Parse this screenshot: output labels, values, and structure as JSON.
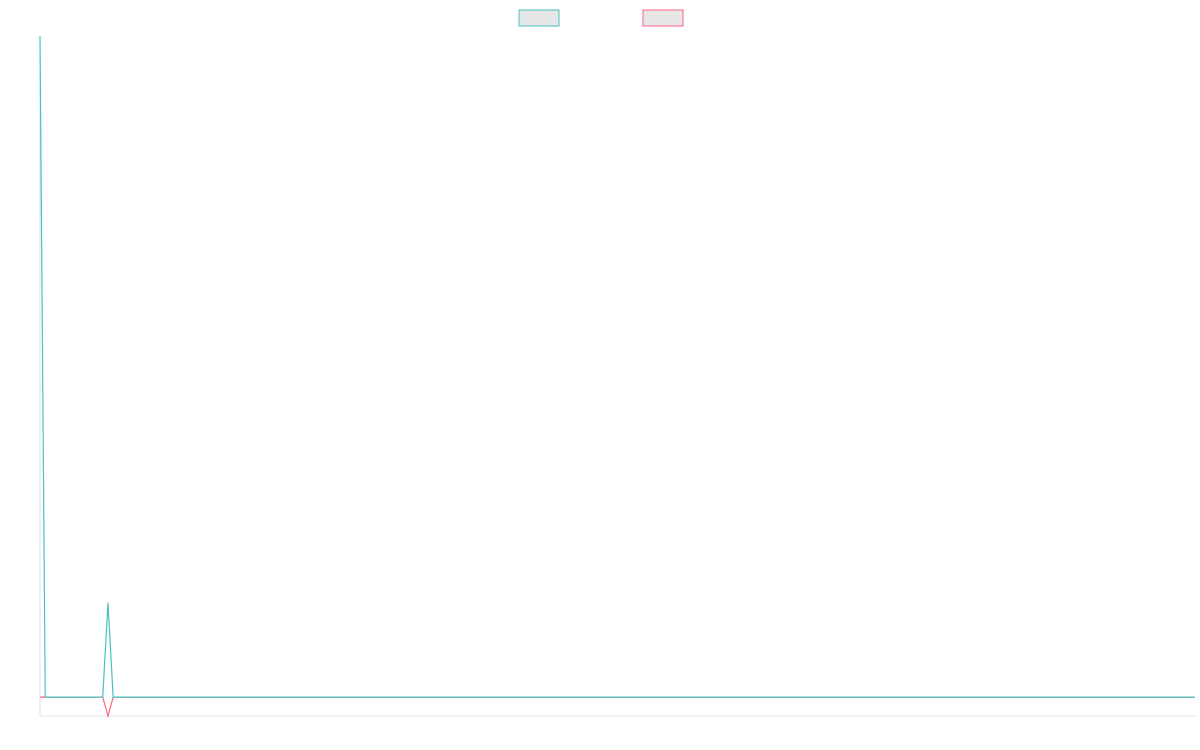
{
  "chart_data": {
    "type": "line",
    "x": [
      0,
      1,
      12,
      13,
      14,
      221
    ],
    "xlim": [
      0,
      221
    ],
    "ylim": [
      -1,
      35
    ],
    "legend": "top",
    "series": [
      {
        "color": "#4bc0c0",
        "values": [
          35,
          0,
          0,
          5,
          0,
          0
        ]
      },
      {
        "color": "#ff6384",
        "values": [
          0,
          0,
          0,
          -1,
          0,
          0
        ]
      }
    ]
  }
}
